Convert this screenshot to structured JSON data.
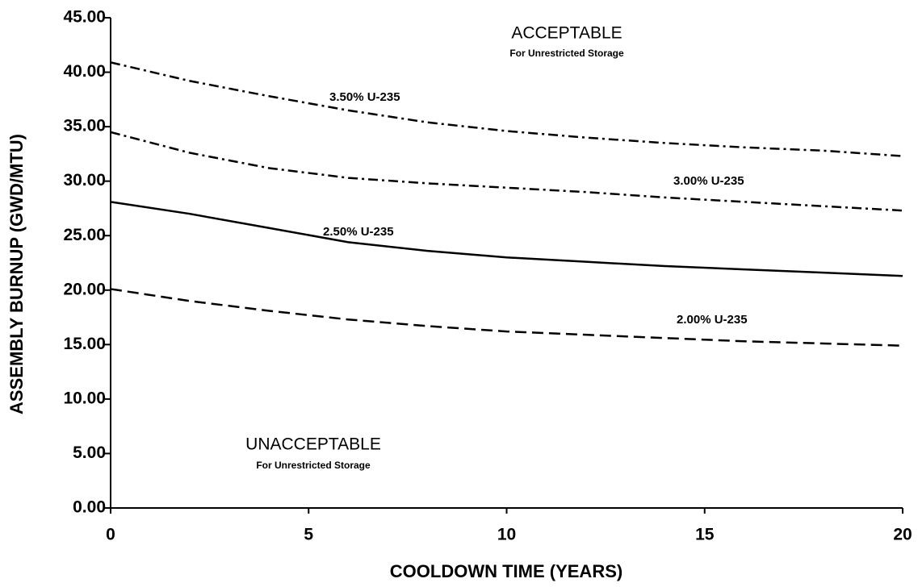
{
  "chart_data": {
    "type": "line",
    "x_label": "COOLDOWN TIME (YEARS)",
    "y_label": "ASSEMBLY BURNUP (GWD/MTU)",
    "xlim": [
      0,
      20
    ],
    "ylim": [
      0,
      45
    ],
    "xticks": [
      0,
      5,
      10,
      15,
      20
    ],
    "yticks": [
      {
        "value": 0,
        "label": "0.00"
      },
      {
        "value": 5,
        "label": "5.00"
      },
      {
        "value": 10,
        "label": "10.00"
      },
      {
        "value": 15,
        "label": "15.00"
      },
      {
        "value": 20,
        "label": "20.00"
      },
      {
        "value": 25,
        "label": "25.00"
      },
      {
        "value": 30,
        "label": "30.00"
      },
      {
        "value": 35,
        "label": "35.00"
      },
      {
        "value": 40,
        "label": "40.00"
      },
      {
        "value": 45,
        "label": "45.00"
      }
    ],
    "x": [
      0,
      2,
      4,
      6,
      8,
      10,
      12,
      14,
      16,
      18,
      20
    ],
    "series": [
      {
        "name": "3.50% U-235",
        "color": "#000000",
        "style": "dashdot",
        "values": [
          40.9,
          39.2,
          37.8,
          36.5,
          35.4,
          34.6,
          34.0,
          33.5,
          33.1,
          32.8,
          32.3
        ]
      },
      {
        "name": "3.00% U-235",
        "color": "#000000",
        "style": "dashdot",
        "values": [
          34.5,
          32.6,
          31.2,
          30.3,
          29.8,
          29.4,
          29.0,
          28.5,
          28.1,
          27.7,
          27.3
        ]
      },
      {
        "name": "2.50% U-235",
        "color": "#000000",
        "style": "solid",
        "values": [
          28.1,
          27.0,
          25.7,
          24.4,
          23.6,
          23.0,
          22.6,
          22.2,
          21.9,
          21.6,
          21.3
        ]
      },
      {
        "name": "2.00% U-235",
        "color": "#000000",
        "style": "dashed",
        "values": [
          20.1,
          19.0,
          18.1,
          17.3,
          16.7,
          16.2,
          15.9,
          15.6,
          15.3,
          15.1,
          14.9
        ]
      }
    ],
    "annotations": [
      {
        "text": "ACCEPTABLE"
      },
      {
        "text": "For Unrestricted Storage"
      },
      {
        "text": "UNACCEPTABLE"
      },
      {
        "text": "For Unrestricted Storage"
      }
    ]
  }
}
